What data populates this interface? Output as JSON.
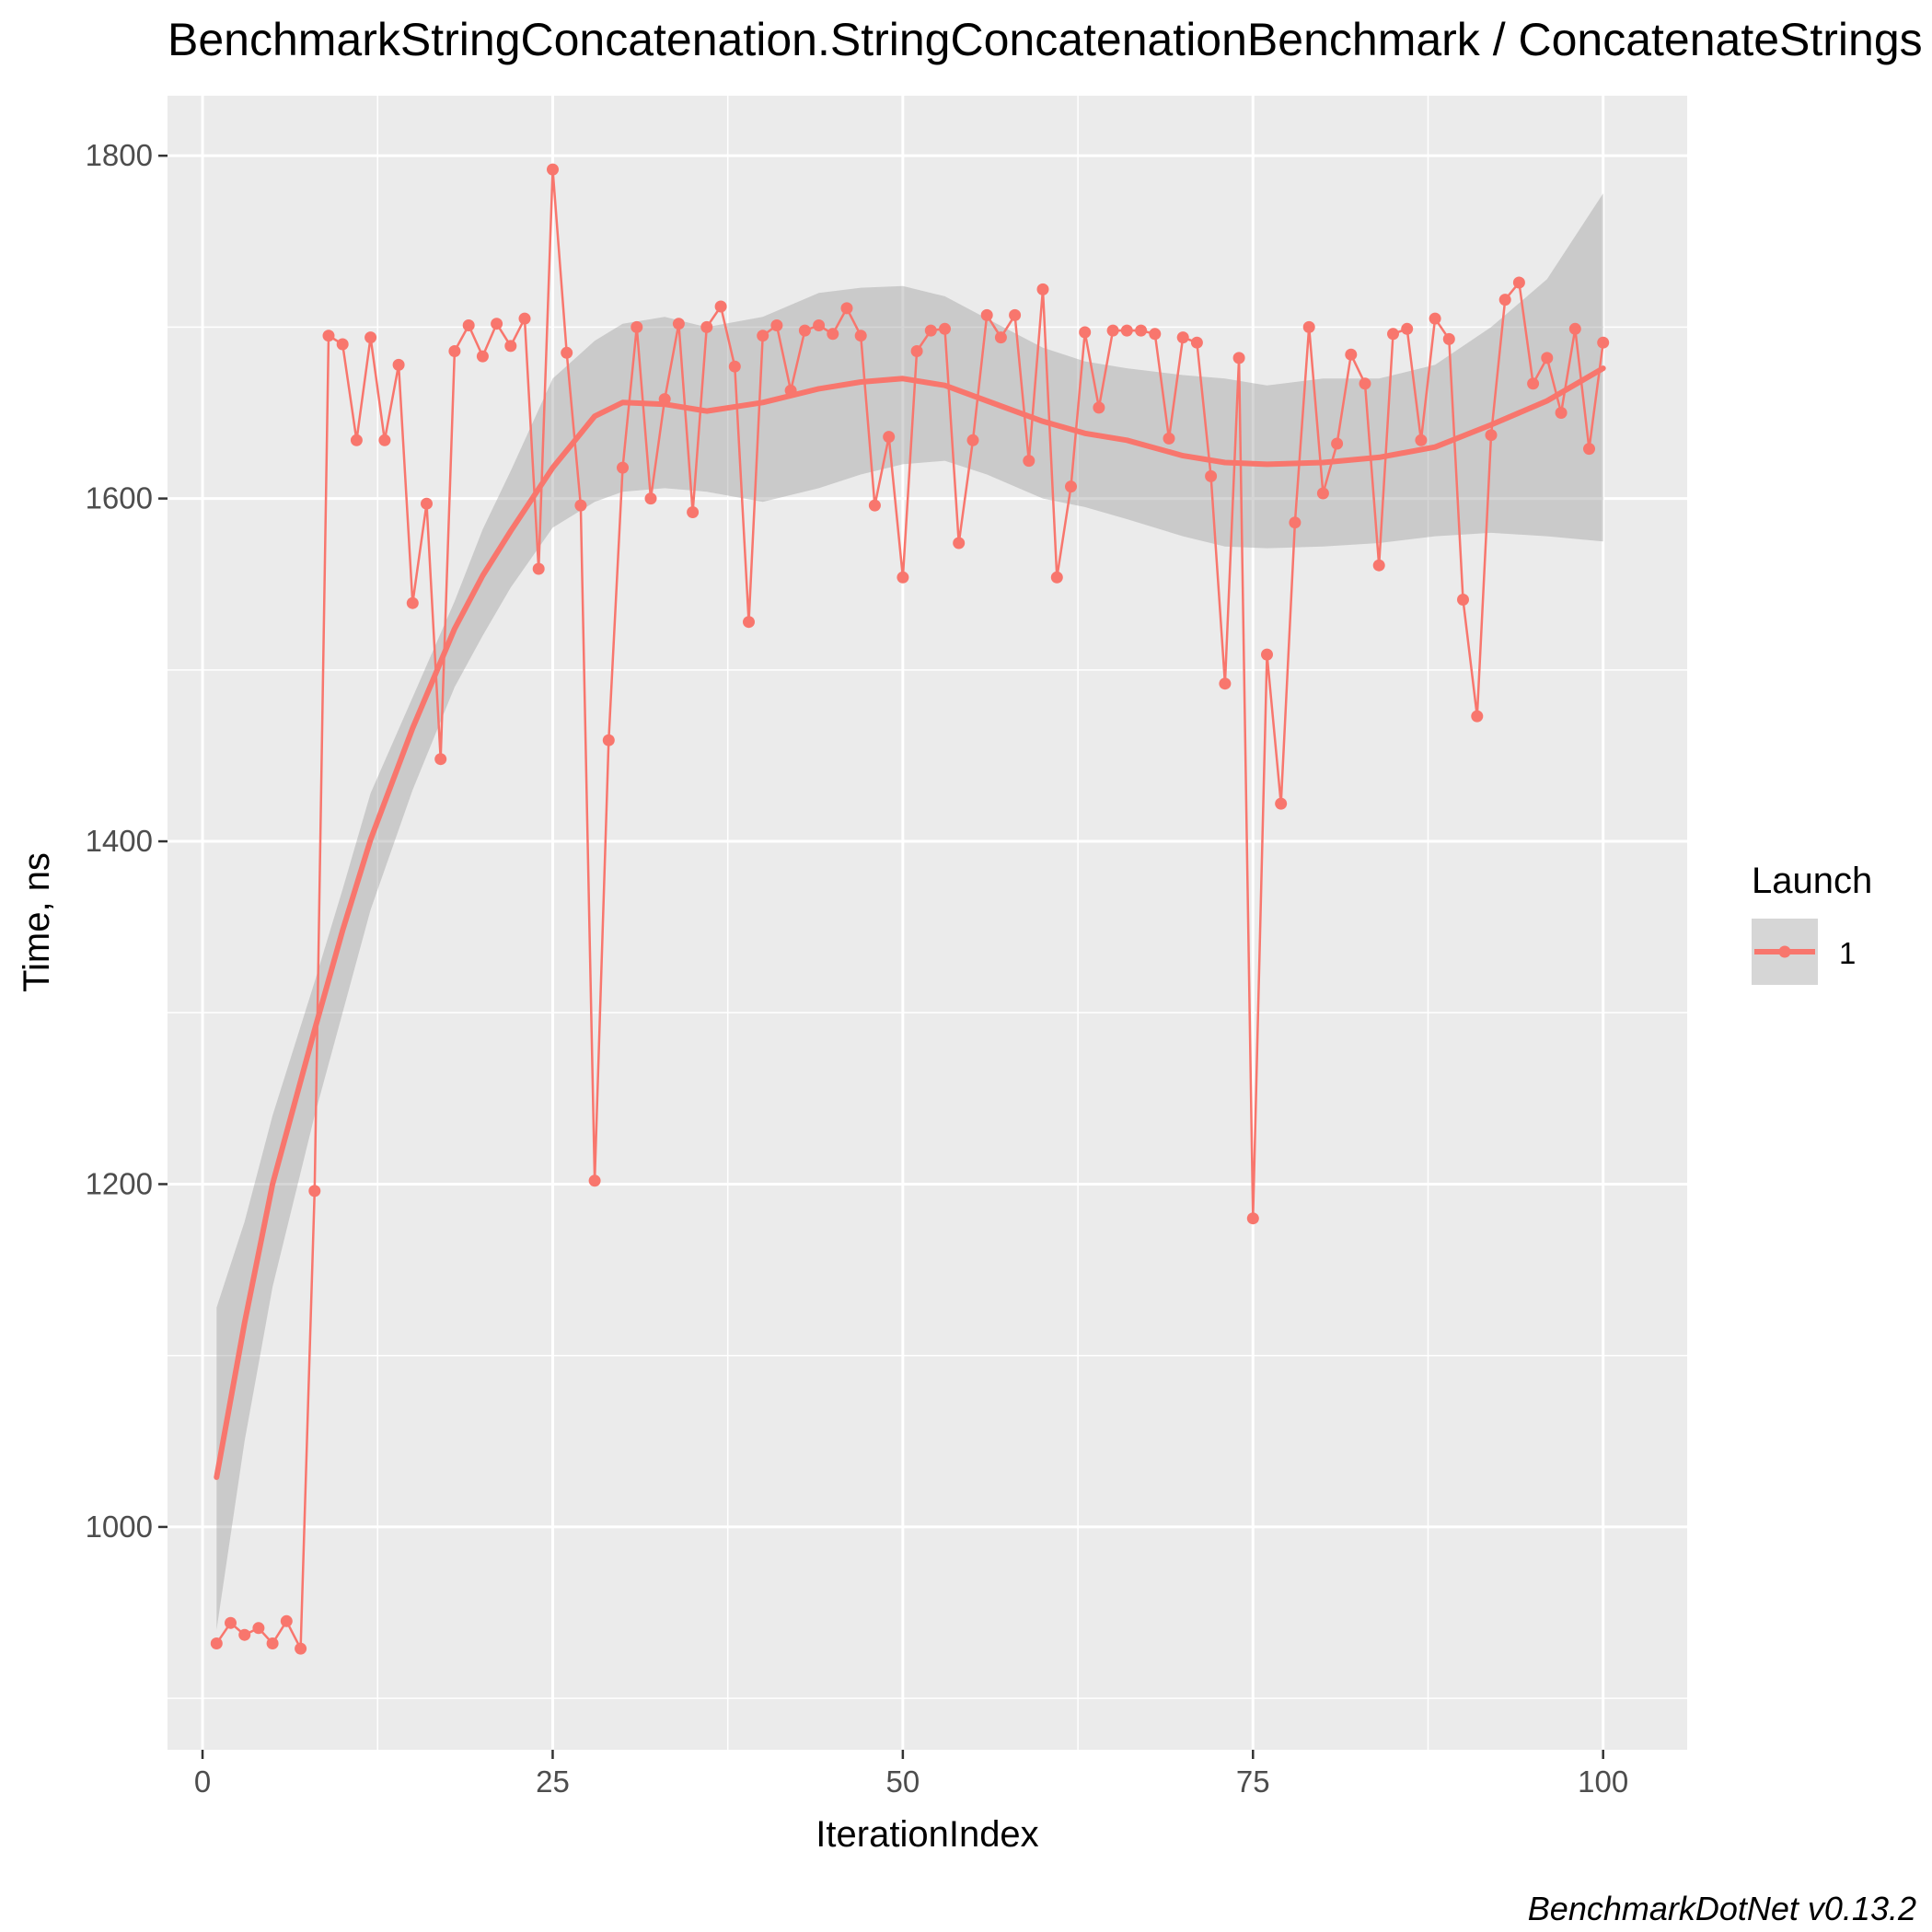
{
  "chart_data": {
    "type": "line",
    "title": "BenchmarkStringConcatenation.StringConcatenationBenchmark / ConcatenateStrings",
    "xlabel": "IterationIndex",
    "ylabel": "Time, ns",
    "caption": "BenchmarkDotNet v0.13.2",
    "xlim": [
      -2.5,
      106
    ],
    "ylim": [
      870,
      1835
    ],
    "x_ticks": [
      0,
      25,
      50,
      75,
      100
    ],
    "x_tick_labels": [
      "0",
      "25",
      "50",
      "75",
      "100"
    ],
    "y_ticks": [
      1000,
      1200,
      1400,
      1600,
      1800
    ],
    "y_tick_labels": [
      "1000",
      "1200",
      "1400",
      "1600",
      "1800"
    ],
    "y_minor_ticks": [
      900,
      1100,
      1300,
      1500,
      1700
    ],
    "grid": true,
    "legend": {
      "title": "Launch",
      "position": "right",
      "entries": [
        "1"
      ]
    },
    "colors": {
      "series": "#F8766D",
      "panel": "#EBEBEB",
      "grid": "#FFFFFF",
      "band": "#999999"
    },
    "series": [
      {
        "name": "1",
        "x": [
          1,
          2,
          3,
          4,
          5,
          6,
          7,
          8,
          9,
          10,
          11,
          12,
          13,
          14,
          15,
          16,
          17,
          18,
          19,
          20,
          21,
          22,
          23,
          24,
          25,
          26,
          27,
          28,
          29,
          30,
          31,
          32,
          33,
          34,
          35,
          36,
          37,
          38,
          39,
          40,
          41,
          42,
          43,
          44,
          45,
          46,
          47,
          48,
          49,
          50,
          51,
          52,
          53,
          54,
          55,
          56,
          57,
          58,
          59,
          60,
          61,
          62,
          63,
          64,
          65,
          66,
          67,
          68,
          69,
          70,
          71,
          72,
          73,
          74,
          75,
          76,
          77,
          78,
          79,
          80,
          81,
          82,
          83,
          84,
          85,
          86,
          87,
          88,
          89,
          90,
          91,
          92,
          93,
          94,
          95,
          96,
          97,
          98,
          99,
          100
        ],
        "values": [
          932,
          944,
          937,
          941,
          932,
          945,
          929,
          1196,
          1695,
          1690,
          1634,
          1694,
          1634,
          1678,
          1539,
          1597,
          1448,
          1686,
          1701,
          1683,
          1702,
          1689,
          1705,
          1559,
          1792,
          1685,
          1596,
          1202,
          1459,
          1618,
          1700,
          1600,
          1658,
          1702,
          1592,
          1700,
          1712,
          1677,
          1528,
          1695,
          1701,
          1663,
          1698,
          1701,
          1696,
          1711,
          1695,
          1596,
          1636,
          1554,
          1686,
          1698,
          1699,
          1574,
          1634,
          1707,
          1694,
          1707,
          1622,
          1722,
          1554,
          1607,
          1697,
          1653,
          1698,
          1698,
          1698,
          1696,
          1635,
          1694,
          1691,
          1613,
          1492,
          1682,
          1180,
          1509,
          1422,
          1586,
          1700,
          1603,
          1632,
          1684,
          1667,
          1561,
          1696,
          1699,
          1634,
          1705,
          1693,
          1541,
          1473,
          1637,
          1716,
          1726,
          1667,
          1682,
          1650,
          1699,
          1629,
          1691
        ]
      }
    ],
    "smooth": {
      "x": [
        1,
        3,
        5,
        8,
        10,
        12,
        15,
        18,
        20,
        22,
        25,
        28,
        30,
        33,
        36,
        40,
        44,
        47,
        50,
        53,
        56,
        60,
        63,
        66,
        70,
        73,
        76,
        80,
        84,
        88,
        92,
        96,
        100
      ],
      "y": [
        1029,
        1119,
        1200,
        1290,
        1348,
        1401,
        1466,
        1524,
        1555,
        1581,
        1618,
        1648,
        1656,
        1655,
        1651,
        1656,
        1664,
        1668,
        1670,
        1666,
        1657,
        1645,
        1638,
        1634,
        1625,
        1621,
        1620,
        1621,
        1624,
        1630,
        1643,
        1657,
        1676
      ],
      "lower": [
        940,
        1050,
        1140,
        1240,
        1300,
        1360,
        1430,
        1490,
        1520,
        1548,
        1583,
        1598,
        1604,
        1606,
        1604,
        1598,
        1606,
        1614,
        1620,
        1622,
        1614,
        1600,
        1595,
        1588,
        1578,
        1572,
        1571,
        1572,
        1574,
        1578,
        1580,
        1578,
        1575
      ],
      "upper": [
        1128,
        1178,
        1240,
        1318,
        1372,
        1428,
        1484,
        1540,
        1582,
        1616,
        1670,
        1692,
        1702,
        1706,
        1700,
        1706,
        1720,
        1723,
        1724,
        1718,
        1705,
        1688,
        1680,
        1676,
        1672,
        1670,
        1666,
        1670,
        1670,
        1678,
        1700,
        1728,
        1778
      ]
    }
  }
}
